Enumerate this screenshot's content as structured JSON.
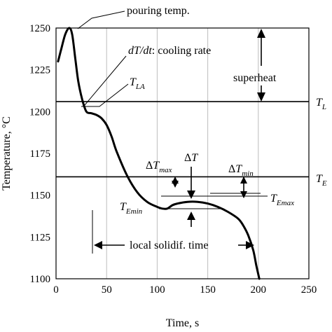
{
  "chart_data": {
    "type": "line",
    "xlabel": "Time, s",
    "ylabel": "Temperature, °C",
    "xlim": [
      0,
      250
    ],
    "ylim": [
      1100,
      1250
    ],
    "x_ticks": [
      0,
      50,
      100,
      150,
      200,
      250
    ],
    "y_ticks": [
      1100,
      1125,
      1150,
      1175,
      1200,
      1225,
      1250
    ],
    "grid": "vertical",
    "series": [
      {
        "x": [
          2,
          5,
          9,
          13,
          16,
          19,
          22,
          26,
          30,
          35,
          40,
          45,
          50,
          55,
          60,
          70,
          80,
          90,
          100,
          105,
          110,
          115,
          120,
          130,
          140,
          150,
          160,
          170,
          180,
          185,
          190,
          195,
          198,
          201
        ],
        "y": [
          1230,
          1237,
          1246,
          1250,
          1246,
          1232,
          1218,
          1207,
          1200,
          1199,
          1198,
          1196,
          1192,
          1185,
          1176,
          1162,
          1152,
          1146,
          1143,
          1142,
          1142,
          1144,
          1145,
          1146,
          1146,
          1145,
          1143,
          1140,
          1136,
          1132,
          1126,
          1117,
          1108,
          1100
        ]
      }
    ],
    "reference_lines": [
      {
        "label": "T_L",
        "y": 1206
      },
      {
        "label": "T_E",
        "y": 1161
      }
    ],
    "annotations": {
      "pouring_temp": "pouring temp.",
      "cooling_rate_prefix": "dT/dt",
      "cooling_rate_suffix": ": cooling rate",
      "superheat": "superheat",
      "local_solidif_time": "local solidif. time",
      "T": "T",
      "sub_LA": "LA",
      "sub_L": "L",
      "sub_E": "E",
      "sub_Emin": "Emin",
      "sub_Emax": "Emax",
      "delta": "Δ",
      "sub_max": "max",
      "sub_min": "min"
    }
  }
}
